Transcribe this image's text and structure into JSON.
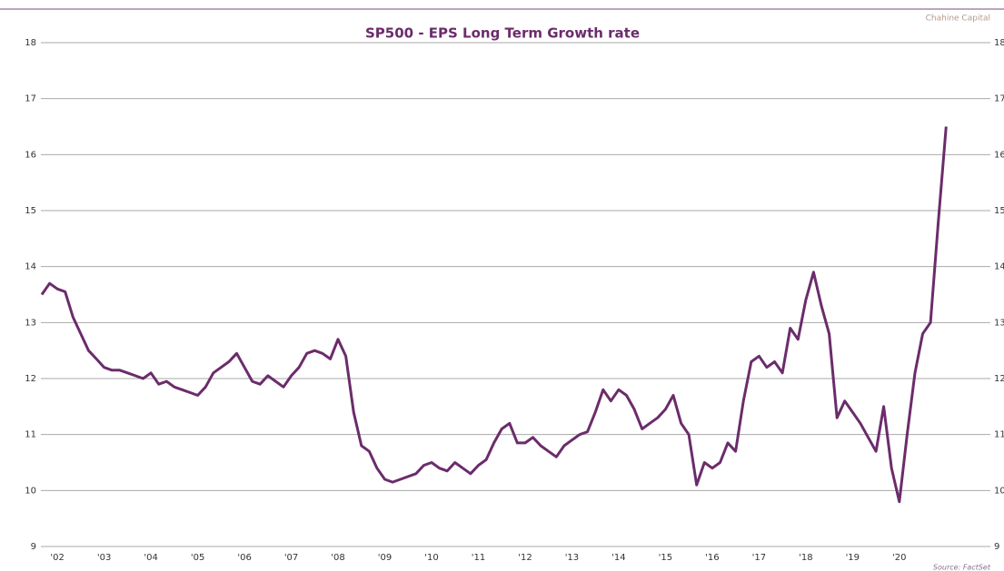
{
  "chart_data": {
    "type": "line",
    "title": "SP500 - EPS Long Term Growth rate",
    "brand": "Chahine Capital",
    "source": "Source: FactSet",
    "color": "#6b2c6b",
    "grid": true,
    "ylim": [
      9,
      18
    ],
    "yticks": [
      9,
      10,
      11,
      12,
      13,
      14,
      15,
      16,
      17,
      18
    ],
    "categories": [
      null,
      null,
      "'02",
      null,
      null,
      null,
      null,
      null,
      "'03",
      null,
      null,
      null,
      null,
      null,
      "'04",
      null,
      null,
      null,
      null,
      null,
      "'05",
      null,
      null,
      null,
      null,
      null,
      "'06",
      null,
      null,
      null,
      null,
      null,
      "'07",
      null,
      null,
      null,
      null,
      null,
      "'08",
      null,
      null,
      null,
      null,
      null,
      "'09",
      null,
      null,
      null,
      null,
      null,
      "'10",
      null,
      null,
      null,
      null,
      null,
      "'11",
      null,
      null,
      null,
      null,
      null,
      "'12",
      null,
      null,
      null,
      null,
      null,
      "'13",
      null,
      null,
      null,
      null,
      null,
      "'14",
      null,
      null,
      null,
      null,
      null,
      "'15",
      null,
      null,
      null,
      null,
      null,
      "'16",
      null,
      null,
      null,
      null,
      null,
      "'17",
      null,
      null,
      null,
      null,
      null,
      "'18",
      null,
      null,
      null,
      null,
      null,
      "'19",
      null,
      null,
      null,
      null,
      null,
      "'20",
      null,
      null,
      null,
      null,
      null,
      null
    ],
    "values": [
      13.5,
      13.7,
      13.6,
      13.55,
      13.1,
      12.8,
      12.5,
      12.35,
      12.2,
      12.15,
      12.15,
      12.1,
      12.05,
      12.0,
      12.1,
      11.9,
      11.95,
      11.85,
      11.8,
      11.75,
      11.7,
      11.85,
      12.1,
      12.2,
      12.3,
      12.45,
      12.2,
      11.95,
      11.9,
      12.05,
      11.95,
      11.85,
      12.05,
      12.2,
      12.45,
      12.5,
      12.45,
      12.35,
      12.7,
      12.4,
      11.4,
      10.8,
      10.7,
      10.4,
      10.2,
      10.15,
      10.2,
      10.25,
      10.3,
      10.45,
      10.5,
      10.4,
      10.35,
      10.5,
      10.4,
      10.3,
      10.45,
      10.55,
      10.85,
      11.1,
      11.2,
      10.85,
      10.85,
      10.95,
      10.8,
      10.7,
      10.6,
      10.8,
      10.9,
      11.0,
      11.05,
      11.4,
      11.8,
      11.6,
      11.8,
      11.7,
      11.45,
      11.1,
      11.2,
      11.3,
      11.45,
      11.7,
      11.2,
      11.0,
      10.1,
      10.5,
      10.4,
      10.5,
      10.85,
      10.7,
      11.6,
      12.3,
      12.4,
      12.2,
      12.3,
      12.1,
      12.9,
      12.7,
      13.4,
      13.9,
      13.3,
      12.8,
      11.3,
      11.6,
      11.4,
      11.2,
      10.95,
      10.7,
      11.5,
      10.4,
      9.8,
      11.0,
      12.1,
      12.8,
      13.0,
      14.8,
      16.5
    ]
  }
}
